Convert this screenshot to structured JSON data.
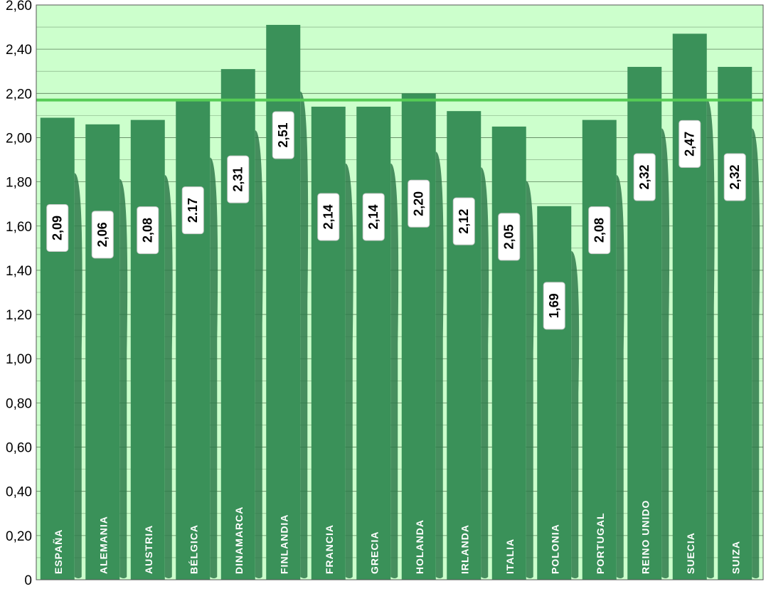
{
  "chart_data": {
    "type": "bar",
    "categories": [
      "ESPAÑA",
      "ALEMANIA",
      "AUSTRIA",
      "BÉLGICA",
      "DINAMARCA",
      "FINLANDIA",
      "FRANCIA",
      "GRECIA",
      "HOLANDA",
      "IRLANDA",
      "ITALIA",
      "POLONIA",
      "PORTUGAL",
      "REINO UNIDO",
      "SUECIA",
      "SUIZA"
    ],
    "values": [
      2.09,
      2.06,
      2.08,
      2.17,
      2.31,
      2.51,
      2.14,
      2.14,
      2.2,
      2.12,
      2.05,
      1.69,
      2.08,
      2.32,
      2.47,
      2.32
    ],
    "value_labels": [
      "2,09",
      "2,06",
      "2,08",
      "2.17",
      "2,31",
      "2,51",
      "2,14",
      "2,14",
      "2,20",
      "2,12",
      "2,05",
      "1,69",
      "2,08",
      "2,32",
      "2,47",
      "2,32"
    ],
    "reference_line": 2.17,
    "ylim": [
      0,
      2.6
    ],
    "yticks": [
      0,
      0.2,
      0.4,
      0.6,
      0.8,
      1.0,
      1.2,
      1.4,
      1.6,
      1.8,
      2.0,
      2.2,
      2.4,
      2.6
    ],
    "ytick_labels": [
      "0",
      "0,20",
      "0,40",
      "0,60",
      "0,80",
      "1,00",
      "1,20",
      "1,40",
      "1,60",
      "1,80",
      "2,00",
      "2,20",
      "2,40",
      "2,60"
    ],
    "title": "",
    "xlabel": "",
    "ylabel": "",
    "grid": true,
    "colors": {
      "plot_background": "#ccffcc",
      "bar": "#3a9159",
      "bar_dark": "#2e7a4a",
      "reference_line": "#55cc55",
      "grid": "#2a4a2a",
      "label_box": "#ffffff",
      "label_text": "#000000",
      "category_text": "#ffffff"
    }
  }
}
